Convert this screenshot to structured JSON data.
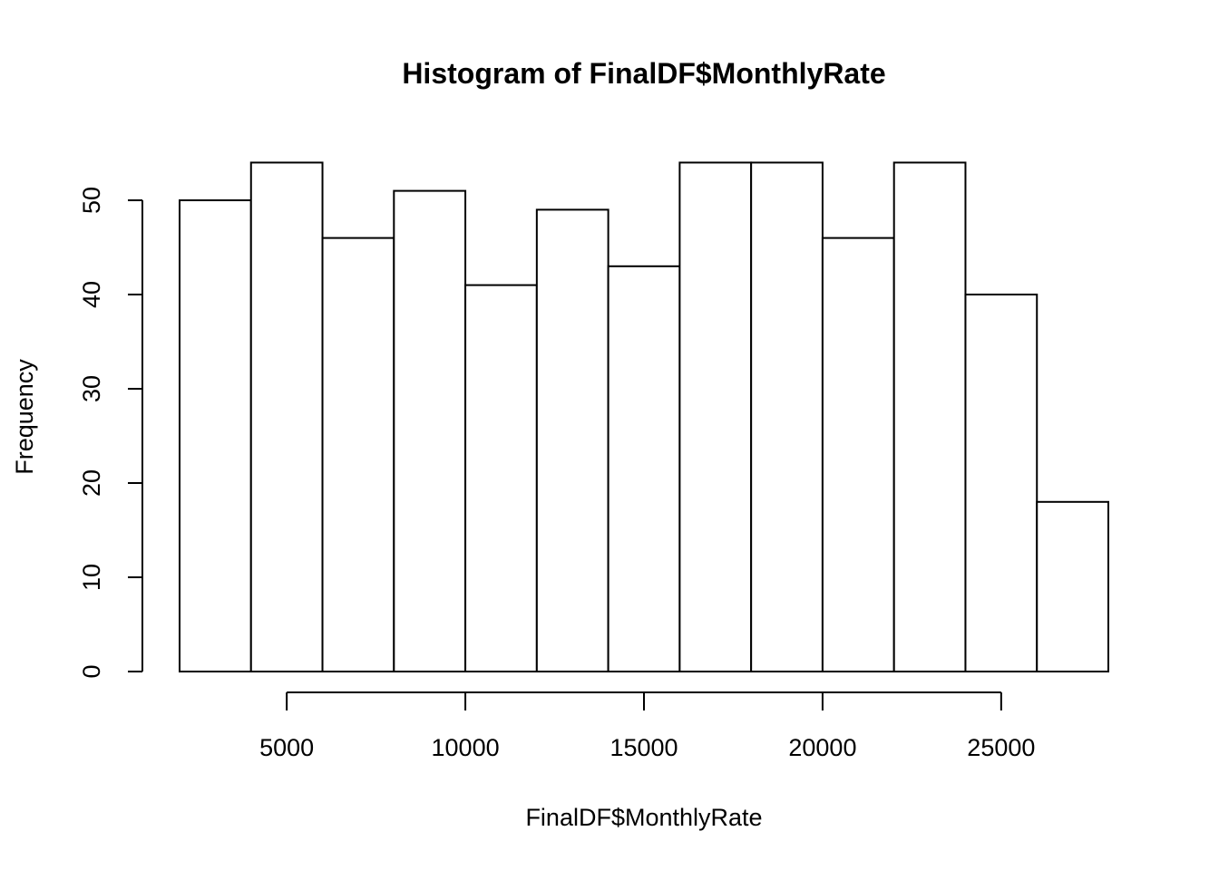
{
  "chart_data": {
    "type": "histogram",
    "title": "Histogram of FinalDF$MonthlyRate",
    "xlabel": "FinalDF$MonthlyRate",
    "ylabel": "Frequency",
    "bin_edges": [
      2000,
      4000,
      6000,
      8000,
      10000,
      12000,
      14000,
      16000,
      18000,
      20000,
      22000,
      24000,
      26000,
      28000
    ],
    "counts": [
      50,
      54,
      46,
      51,
      41,
      49,
      43,
      54,
      54,
      46,
      54,
      40,
      18
    ],
    "x_ticks": [
      5000,
      10000,
      15000,
      20000,
      25000
    ],
    "y_ticks": [
      0,
      10,
      20,
      30,
      40,
      50
    ],
    "xlim": [
      2000,
      28000
    ],
    "ylim": [
      0,
      54
    ],
    "grid": false,
    "colors": {
      "bar_fill": "#ffffff",
      "bar_stroke": "#000000"
    }
  }
}
